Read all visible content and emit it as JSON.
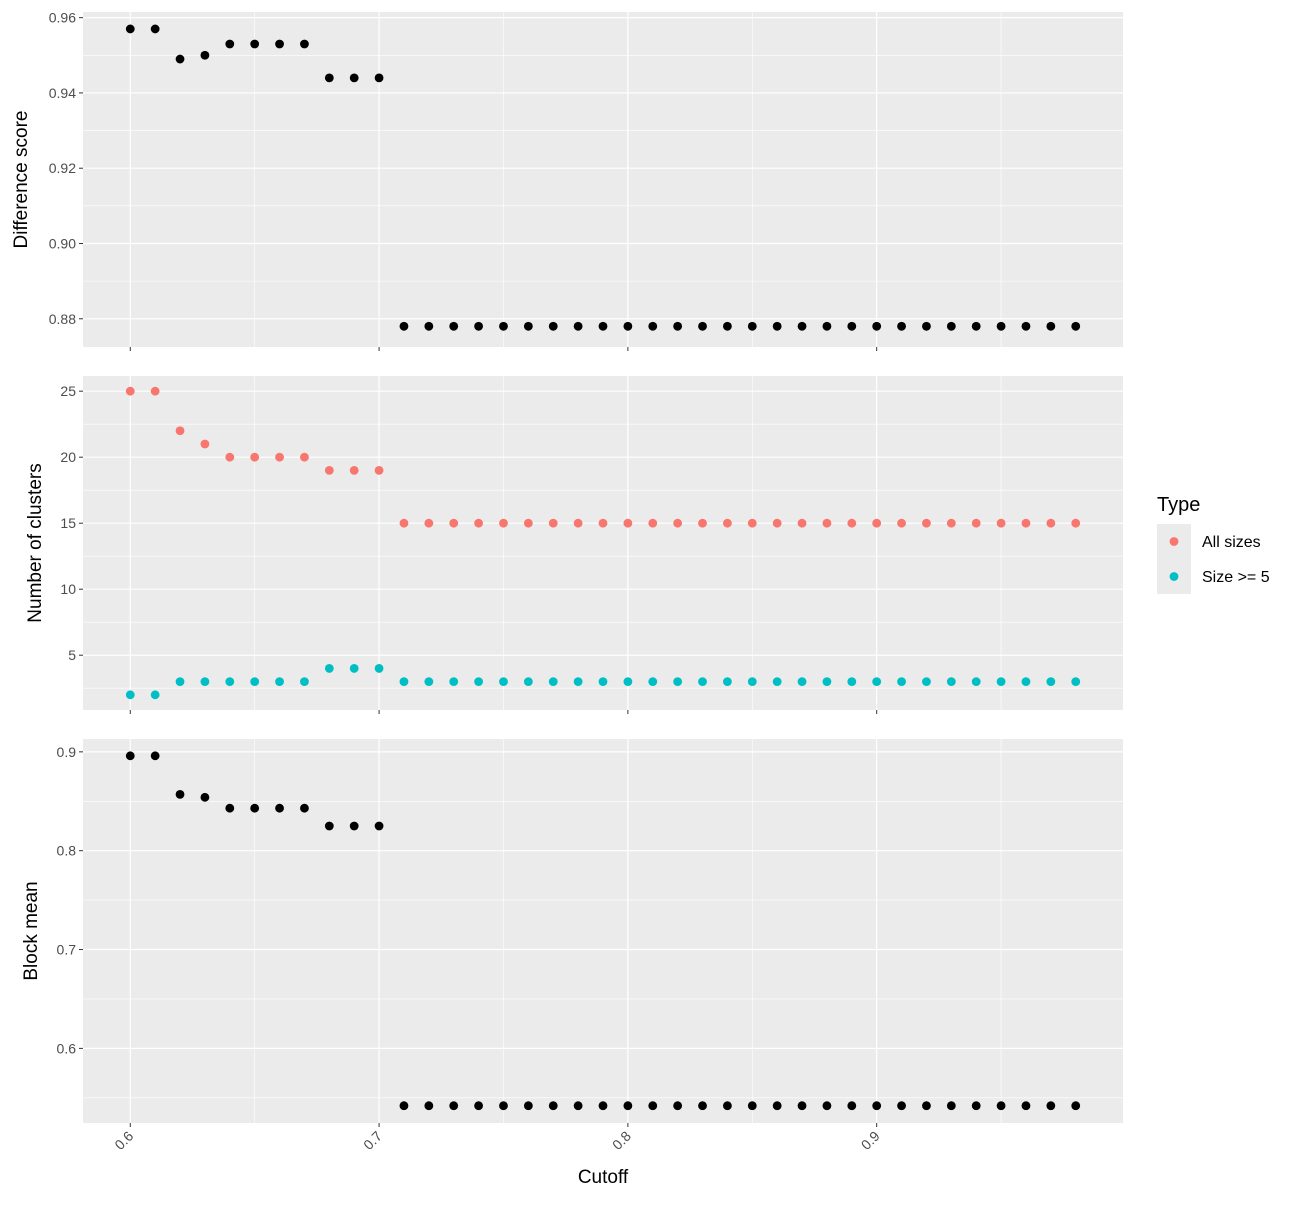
{
  "chart_data": {
    "type": "scatter",
    "xlabel": "Cutoff",
    "x_ticks": [
      "0.6",
      "0.7",
      "0.8",
      "0.9"
    ],
    "x": [
      0.6,
      0.61,
      0.62,
      0.63,
      0.64,
      0.65,
      0.66,
      0.67,
      0.68,
      0.69,
      0.7,
      0.71,
      0.72,
      0.73,
      0.74,
      0.75,
      0.76,
      0.77,
      0.78,
      0.79,
      0.8,
      0.81,
      0.82,
      0.83,
      0.84,
      0.85,
      0.86,
      0.87,
      0.88,
      0.89,
      0.9,
      0.91,
      0.92,
      0.93,
      0.94,
      0.95,
      0.96,
      0.97,
      0.98
    ],
    "xlim": [
      0.581,
      0.999
    ],
    "grid": true,
    "legend": {
      "title": "Type",
      "placement": "right",
      "entries": [
        {
          "label": "All sizes",
          "color": "#F8766D"
        },
        {
          "label": "Size >= 5",
          "color": "#00BFC4"
        }
      ]
    },
    "panels": [
      {
        "ylabel": "Difference score",
        "ylim": [
          0.8725,
          0.9615
        ],
        "y_ticks": [
          "0.88",
          "0.90",
          "0.92",
          "0.94",
          "0.96"
        ],
        "series": [
          {
            "color": "#000000",
            "values": [
              0.957,
              0.957,
              0.949,
              0.95,
              0.953,
              0.953,
              0.953,
              0.953,
              0.944,
              0.944,
              0.944,
              0.878,
              0.878,
              0.878,
              0.878,
              0.878,
              0.878,
              0.878,
              0.878,
              0.878,
              0.878,
              0.878,
              0.878,
              0.878,
              0.878,
              0.878,
              0.878,
              0.878,
              0.878,
              0.878,
              0.878,
              0.878,
              0.878,
              0.878,
              0.878,
              0.878,
              0.878,
              0.878,
              0.878
            ]
          }
        ]
      },
      {
        "ylabel": "Number of clusters",
        "ylim": [
          0.85,
          26.15
        ],
        "y_ticks": [
          "5",
          "10",
          "15",
          "20",
          "25"
        ],
        "series": [
          {
            "name": "All sizes",
            "color": "#F8766D",
            "values": [
              25,
              25,
              22,
              21,
              20,
              20,
              20,
              20,
              19,
              19,
              19,
              15,
              15,
              15,
              15,
              15,
              15,
              15,
              15,
              15,
              15,
              15,
              15,
              15,
              15,
              15,
              15,
              15,
              15,
              15,
              15,
              15,
              15,
              15,
              15,
              15,
              15,
              15,
              15
            ]
          },
          {
            "name": "Size >= 5",
            "color": "#00BFC4",
            "values": [
              2,
              2,
              3,
              3,
              3,
              3,
              3,
              3,
              4,
              4,
              4,
              3,
              3,
              3,
              3,
              3,
              3,
              3,
              3,
              3,
              3,
              3,
              3,
              3,
              3,
              3,
              3,
              3,
              3,
              3,
              3,
              3,
              3,
              3,
              3,
              3,
              3,
              3,
              3
            ]
          }
        ]
      },
      {
        "ylabel": "Block mean",
        "ylim": [
          0.5245,
          0.913
        ],
        "y_ticks": [
          "0.6",
          "0.7",
          "0.8",
          "0.9"
        ],
        "series": [
          {
            "color": "#000000",
            "values": [
              0.896,
              0.896,
              0.857,
              0.854,
              0.843,
              0.843,
              0.843,
              0.843,
              0.825,
              0.825,
              0.825,
              0.542,
              0.542,
              0.542,
              0.542,
              0.542,
              0.542,
              0.542,
              0.542,
              0.542,
              0.542,
              0.542,
              0.542,
              0.542,
              0.542,
              0.542,
              0.542,
              0.542,
              0.542,
              0.542,
              0.542,
              0.542,
              0.542,
              0.542,
              0.542,
              0.542,
              0.542,
              0.542,
              0.542
            ]
          }
        ]
      }
    ]
  }
}
